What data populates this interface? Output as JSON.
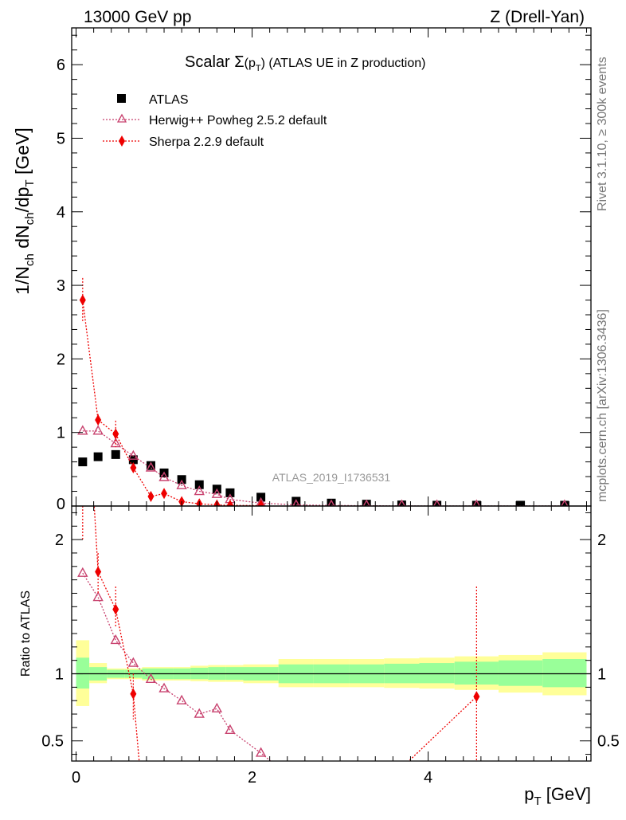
{
  "header": {
    "left": "13000 GeV pp",
    "right": "Z (Drell-Yan)"
  },
  "side": {
    "rivet": "Rivet 3.1.10, ≥ 300k events",
    "mcplots": "mcplots.cern.ch [arXiv:1306.3436]"
  },
  "chart_data": {
    "type": "scatter",
    "title_parts": {
      "pre": "Scalar ",
      "sigma": "Σ",
      "pt_open": "(p",
      "pt_sub": "T",
      "pt_close": ")",
      "post": " (ATLAS UE in Z production)"
    },
    "ylabel_parts": {
      "a": "1/N",
      "a_sub": "ch",
      "b": " dN",
      "b_sub": "ch",
      "c": "/dp",
      "c_sub": "T",
      "d": " [GeV]"
    },
    "xlabel_parts": {
      "a": "p",
      "a_sub": "T",
      "b": " [GeV]"
    },
    "ratio_ylabel": "Ratio to ATLAS",
    "watermark": "ATLAS_2019_I1736531",
    "xlim": [
      -0.05,
      5.85
    ],
    "ylim_main": [
      0,
      6.5
    ],
    "ylim_ratio": [
      0.35,
      2.25
    ],
    "x_ticks": [
      0,
      2,
      4
    ],
    "x_tick_labels": [
      "0",
      "2",
      "4"
    ],
    "main_y_ticks": [
      0,
      1,
      2,
      3,
      4,
      5,
      6
    ],
    "main_y_tick_labels": [
      "0",
      "1",
      "2",
      "3",
      "4",
      "5",
      "6"
    ],
    "ratio_y_ticks": [
      0.5,
      1,
      2
    ],
    "ratio_y_tick_labels": [
      "0.5",
      "1",
      "2"
    ],
    "ratio_y_tick_labels_right": [
      "0.5",
      "1",
      "2"
    ],
    "legend": [
      "ATLAS",
      "Herwig++ Powheg 2.5.2 default",
      "Sherpa 2.2.9 default"
    ],
    "legend_position": "top-left",
    "series": [
      {
        "name": "ATLAS",
        "marker": "square",
        "color": "#000000",
        "x": [
          0.075,
          0.25,
          0.45,
          0.65,
          0.85,
          1.0,
          1.2,
          1.4,
          1.6,
          1.75,
          2.1,
          2.5,
          2.9,
          3.3,
          3.7,
          4.1,
          4.55,
          5.05,
          5.55
        ],
        "y": [
          0.6,
          0.67,
          0.7,
          0.63,
          0.55,
          0.45,
          0.36,
          0.29,
          0.23,
          0.18,
          0.12,
          0.065,
          0.04,
          0.025,
          0.015,
          0.01,
          0.007,
          0.004,
          0.002
        ]
      },
      {
        "name": "Herwig++ Powheg 2.5.2 default",
        "marker": "triangle",
        "color": "#c8416e",
        "x": [
          0.075,
          0.25,
          0.45,
          0.65,
          0.85,
          1.0,
          1.2,
          1.4,
          1.6,
          1.75,
          2.1,
          2.5,
          2.9,
          3.3,
          3.7,
          4.1,
          4.55,
          5.55
        ],
        "y": [
          1.02,
          1.02,
          0.85,
          0.68,
          0.52,
          0.39,
          0.28,
          0.2,
          0.16,
          0.09,
          0.04,
          0.015,
          0.008,
          0.004,
          0.002,
          0.001,
          0.001,
          0.0005
        ]
      },
      {
        "name": "Sherpa 2.2.9 default",
        "marker": "diamond",
        "color": "#ee0000",
        "x": [
          0.075,
          0.25,
          0.45,
          0.65,
          0.85,
          1.0,
          1.2,
          1.4,
          1.6,
          1.75,
          2.1
        ],
        "y": [
          2.8,
          1.17,
          0.98,
          0.52,
          0.13,
          0.17,
          0.06,
          0.03,
          0.015,
          0.01,
          0.005
        ],
        "yerr": [
          0.3,
          0.08,
          0.18,
          0.06,
          0.03,
          0.03,
          0.02,
          0.01,
          0.005,
          0.005,
          0.003
        ]
      }
    ],
    "ratio_series": [
      {
        "name": "Herwig++ Powheg 2.5.2 default",
        "marker": "triangle",
        "color": "#c8416e",
        "x": [
          0.075,
          0.25,
          0.45,
          0.65,
          0.85,
          1.0,
          1.2,
          1.4,
          1.6,
          1.75,
          2.1,
          2.3
        ],
        "y": [
          1.75,
          1.57,
          1.25,
          1.08,
          0.96,
          0.89,
          0.8,
          0.7,
          0.74,
          0.58,
          0.41,
          0.3
        ],
        "draw_marker": [
          true,
          true,
          true,
          true,
          true,
          true,
          true,
          true,
          true,
          true,
          true,
          false
        ]
      },
      {
        "name": "Sherpa 2.2.9 default",
        "marker": "diamond",
        "color": "#ee0000",
        "x": [
          0.05,
          0.25,
          0.45,
          0.65,
          0.75,
          1.75,
          2.0,
          3.7,
          4.55
        ],
        "y": [
          4.0,
          1.76,
          1.48,
          0.85,
          0.1,
          0.1,
          0.1,
          0.3,
          0.83
        ],
        "draw_marker": [
          false,
          true,
          true,
          true,
          false,
          false,
          false,
          false,
          true
        ],
        "err_x": [
          0.075,
          0.25,
          0.45,
          0.65,
          4.55
        ],
        "err_lo": [
          2.0,
          1.6,
          1.35,
          0.66,
          0.1
        ],
        "err_hi": [
          2.25,
          1.9,
          1.65,
          1.0,
          1.65
        ]
      }
    ],
    "bands": {
      "edges": [
        0.0,
        0.15,
        0.35,
        0.55,
        0.75,
        0.9,
        1.1,
        1.3,
        1.5,
        1.7,
        1.9,
        2.3,
        2.7,
        3.1,
        3.5,
        3.9,
        4.3,
        4.8,
        5.3,
        5.8
      ],
      "inner_lo": [
        0.89,
        0.95,
        0.97,
        0.97,
        0.96,
        0.96,
        0.96,
        0.96,
        0.955,
        0.955,
        0.95,
        0.93,
        0.93,
        0.93,
        0.93,
        0.93,
        0.92,
        0.91,
        0.9
      ],
      "inner_hi": [
        1.12,
        1.05,
        1.03,
        1.03,
        1.04,
        1.04,
        1.04,
        1.045,
        1.05,
        1.05,
        1.05,
        1.07,
        1.07,
        1.07,
        1.075,
        1.08,
        1.09,
        1.1,
        1.11
      ],
      "outer_lo": [
        0.76,
        0.93,
        0.96,
        0.96,
        0.95,
        0.95,
        0.95,
        0.945,
        0.94,
        0.94,
        0.93,
        0.9,
        0.9,
        0.9,
        0.895,
        0.89,
        0.88,
        0.86,
        0.84
      ],
      "outer_hi": [
        1.25,
        1.08,
        1.04,
        1.04,
        1.05,
        1.05,
        1.05,
        1.06,
        1.065,
        1.065,
        1.07,
        1.11,
        1.11,
        1.11,
        1.115,
        1.12,
        1.13,
        1.14,
        1.16
      ],
      "inner_color": "#99ff99",
      "outer_color": "#ffff99"
    }
  }
}
